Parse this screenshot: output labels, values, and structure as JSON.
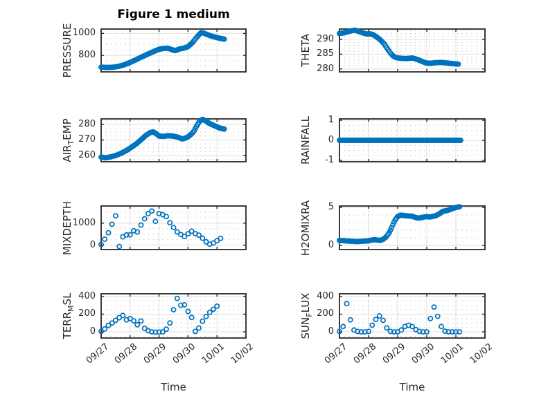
{
  "figure": {
    "title": "Figure 1 medium",
    "xlabel": "Time",
    "x_tick_labels": [
      "09/27",
      "09/28",
      "09/29",
      "09/30",
      "10/01",
      "10/02"
    ],
    "xlim_days": [
      0,
      5
    ],
    "marker_color": "#0072BD",
    "axis_color": "#262626",
    "grid_on": true,
    "minor_grid_on": true
  },
  "chart_data": [
    {
      "type": "scatter",
      "name": "pressure",
      "ylabel": "PRESSURE",
      "ylabel_parts": [
        {
          "text": "PRESSURE"
        }
      ],
      "yticks": [
        800,
        1000
      ],
      "ylim": [
        650,
        1040
      ],
      "yminor_step": 50,
      "interval_hours": 1,
      "points": [
        [
          0,
          693
        ],
        [
          0.2,
          690
        ],
        [
          0.4,
          692
        ],
        [
          0.6,
          700
        ],
        [
          0.8,
          715
        ],
        [
          1.0,
          736
        ],
        [
          1.2,
          760
        ],
        [
          1.4,
          786
        ],
        [
          1.6,
          810
        ],
        [
          1.8,
          834
        ],
        [
          2.0,
          856
        ],
        [
          2.15,
          863
        ],
        [
          2.3,
          866
        ],
        [
          2.45,
          852
        ],
        [
          2.55,
          843
        ],
        [
          2.7,
          858
        ],
        [
          2.85,
          866
        ],
        [
          3.0,
          880
        ],
        [
          3.15,
          915
        ],
        [
          3.3,
          965
        ],
        [
          3.45,
          1008
        ],
        [
          3.55,
          1002
        ],
        [
          3.7,
          986
        ],
        [
          3.85,
          972
        ],
        [
          4.0,
          962
        ],
        [
          4.1,
          956
        ],
        [
          4.25,
          948
        ]
      ]
    },
    {
      "type": "scatter",
      "name": "theta",
      "ylabel": "THETA",
      "ylabel_parts": [
        {
          "text": "THETA"
        }
      ],
      "yticks": [
        280,
        285,
        290
      ],
      "ylim": [
        279,
        293.5
      ],
      "yminor_step": 1,
      "interval_hours": 1,
      "points": [
        [
          0,
          292.0
        ],
        [
          0.15,
          292.2
        ],
        [
          0.3,
          292.6
        ],
        [
          0.45,
          293.0
        ],
        [
          0.55,
          293.1
        ],
        [
          0.65,
          292.7
        ],
        [
          0.8,
          292.2
        ],
        [
          0.95,
          291.8
        ],
        [
          1.05,
          291.9
        ],
        [
          1.15,
          291.6
        ],
        [
          1.25,
          291.0
        ],
        [
          1.35,
          290.3
        ],
        [
          1.45,
          289.4
        ],
        [
          1.55,
          288.3
        ],
        [
          1.65,
          286.8
        ],
        [
          1.75,
          285.4
        ],
        [
          1.85,
          284.3
        ],
        [
          1.95,
          283.8
        ],
        [
          2.1,
          283.6
        ],
        [
          2.3,
          283.5
        ],
        [
          2.5,
          283.7
        ],
        [
          2.65,
          283.3
        ],
        [
          2.8,
          282.7
        ],
        [
          2.95,
          282.1
        ],
        [
          3.1,
          281.9
        ],
        [
          3.3,
          282.1
        ],
        [
          3.5,
          282.2
        ],
        [
          3.7,
          282.0
        ],
        [
          3.9,
          281.8
        ],
        [
          4.1,
          281.6
        ]
      ]
    },
    {
      "type": "scatter",
      "name": "air-temp",
      "ylabel": "AIR_TEMP",
      "ylabel_parts": [
        {
          "text": "AIR"
        },
        {
          "text": "T",
          "sub": true
        },
        {
          "text": "EMP"
        }
      ],
      "yticks": [
        260,
        270,
        280
      ],
      "ylim": [
        256,
        283.5
      ],
      "yminor_step": 2.5,
      "interval_hours": 1,
      "points": [
        [
          0,
          259
        ],
        [
          0.15,
          258.5
        ],
        [
          0.3,
          259
        ],
        [
          0.5,
          260
        ],
        [
          0.7,
          261.5
        ],
        [
          0.9,
          263.5
        ],
        [
          1.1,
          266
        ],
        [
          1.25,
          268
        ],
        [
          1.4,
          270.5
        ],
        [
          1.55,
          273
        ],
        [
          1.7,
          274.8
        ],
        [
          1.8,
          275.2
        ],
        [
          1.9,
          274
        ],
        [
          2.0,
          272.5
        ],
        [
          2.15,
          272.3
        ],
        [
          2.3,
          272.7
        ],
        [
          2.5,
          272.4
        ],
        [
          2.65,
          271.8
        ],
        [
          2.8,
          270.6
        ],
        [
          2.9,
          271.1
        ],
        [
          3.0,
          272
        ],
        [
          3.1,
          273.5
        ],
        [
          3.2,
          275.5
        ],
        [
          3.3,
          279
        ],
        [
          3.4,
          282
        ],
        [
          3.5,
          283.2
        ],
        [
          3.6,
          282.4
        ],
        [
          3.7,
          281
        ],
        [
          3.85,
          279.6
        ],
        [
          4.0,
          278.4
        ],
        [
          4.1,
          277.6
        ],
        [
          4.25,
          277
        ]
      ]
    },
    {
      "type": "scatter",
      "name": "rainfall",
      "ylabel": "RAINFALL",
      "ylabel_parts": [
        {
          "text": "RAINFALL"
        }
      ],
      "yticks": [
        -1,
        0,
        1
      ],
      "ylim": [
        -1.07,
        1.07
      ],
      "yminor_step": 0.25,
      "interval_hours": 1,
      "points": [
        [
          0,
          0
        ],
        [
          4.2,
          0
        ]
      ]
    },
    {
      "type": "scatter",
      "name": "mixdepth",
      "ylabel": "MIXDEPTH",
      "ylabel_parts": [
        {
          "text": "MIXDEPTH"
        }
      ],
      "yticks": [
        0,
        1000
      ],
      "ylim": [
        -200,
        1780
      ],
      "yminor_step": 250,
      "interval_hours": 3,
      "points": [
        [
          0,
          30
        ],
        [
          0.1,
          200
        ],
        [
          0.2,
          480
        ],
        [
          0.3,
          650
        ],
        [
          0.4,
          1050
        ],
        [
          0.47,
          1380
        ],
        [
          0.52,
          1300
        ],
        [
          0.58,
          800
        ],
        [
          0.62,
          -80
        ],
        [
          0.68,
          150
        ],
        [
          0.75,
          380
        ],
        [
          0.85,
          480
        ],
        [
          0.95,
          420
        ],
        [
          1.05,
          520
        ],
        [
          1.15,
          700
        ],
        [
          1.25,
          600
        ],
        [
          1.35,
          850
        ],
        [
          1.45,
          1100
        ],
        [
          1.55,
          1300
        ],
        [
          1.65,
          1480
        ],
        [
          1.75,
          1550
        ],
        [
          1.82,
          1420
        ],
        [
          1.88,
          1050
        ],
        [
          1.95,
          1520
        ],
        [
          2.05,
          1350
        ],
        [
          2.15,
          1400
        ],
        [
          2.25,
          1300
        ],
        [
          2.45,
          850
        ],
        [
          2.55,
          750
        ],
        [
          2.65,
          550
        ],
        [
          2.75,
          480
        ],
        [
          2.85,
          380
        ],
        [
          2.95,
          430
        ],
        [
          3.05,
          600
        ],
        [
          3.15,
          650
        ],
        [
          3.25,
          520
        ],
        [
          3.35,
          480
        ],
        [
          3.45,
          380
        ],
        [
          3.55,
          250
        ],
        [
          3.65,
          120
        ],
        [
          3.75,
          40
        ],
        [
          3.85,
          80
        ],
        [
          3.95,
          150
        ],
        [
          4.05,
          250
        ],
        [
          4.15,
          330
        ],
        [
          4.2,
          360
        ]
      ]
    },
    {
      "type": "scatter",
      "name": "h2omixra",
      "ylabel": "H2OMIXRA",
      "ylabel_parts": [
        {
          "text": "H2OMIXRA"
        }
      ],
      "yticks": [
        0,
        5
      ],
      "ylim": [
        -0.55,
        5.2
      ],
      "yminor_step": 1,
      "interval_hours": 1,
      "points": [
        [
          0,
          0.65
        ],
        [
          0.2,
          0.6
        ],
        [
          0.4,
          0.55
        ],
        [
          0.6,
          0.5
        ],
        [
          0.8,
          0.55
        ],
        [
          1.0,
          0.6
        ],
        [
          1.1,
          0.7
        ],
        [
          1.2,
          0.75
        ],
        [
          1.3,
          0.7
        ],
        [
          1.4,
          0.65
        ],
        [
          1.5,
          0.8
        ],
        [
          1.6,
          1.1
        ],
        [
          1.7,
          1.6
        ],
        [
          1.8,
          2.4
        ],
        [
          1.9,
          3.3
        ],
        [
          2.0,
          3.8
        ],
        [
          2.1,
          4.0
        ],
        [
          2.3,
          3.9
        ],
        [
          2.5,
          3.85
        ],
        [
          2.6,
          3.7
        ],
        [
          2.7,
          3.6
        ],
        [
          2.8,
          3.65
        ],
        [
          2.9,
          3.75
        ],
        [
          3.0,
          3.8
        ],
        [
          3.1,
          3.75
        ],
        [
          3.3,
          3.9
        ],
        [
          3.45,
          4.2
        ],
        [
          3.55,
          4.5
        ],
        [
          3.7,
          4.6
        ],
        [
          3.85,
          4.8
        ],
        [
          3.95,
          4.95
        ],
        [
          4.05,
          5.05
        ],
        [
          4.15,
          5.1
        ]
      ]
    },
    {
      "type": "scatter",
      "name": "terr-msl",
      "ylabel": "TERR_MSL",
      "ylabel_parts": [
        {
          "text": "TERR"
        },
        {
          "text": "M",
          "sub": true
        },
        {
          "text": "SL"
        }
      ],
      "yticks": [
        0,
        200,
        400
      ],
      "ylim": [
        -70,
        430
      ],
      "yminor_step": 50,
      "interval_hours": 3,
      "points": [
        [
          0,
          5
        ],
        [
          0.1,
          25
        ],
        [
          0.2,
          55
        ],
        [
          0.3,
          90
        ],
        [
          0.35,
          110
        ],
        [
          0.42,
          80
        ],
        [
          0.5,
          130
        ],
        [
          0.55,
          180
        ],
        [
          0.6,
          150
        ],
        [
          0.65,
          170
        ],
        [
          0.7,
          160
        ],
        [
          0.75,
          185
        ],
        [
          0.8,
          150
        ],
        [
          0.85,
          160
        ],
        [
          0.9,
          110
        ],
        [
          0.95,
          130
        ],
        [
          1.0,
          150
        ],
        [
          1.05,
          195
        ],
        [
          1.1,
          150
        ],
        [
          1.15,
          100
        ],
        [
          1.2,
          60
        ],
        [
          1.25,
          80
        ],
        [
          1.3,
          110
        ],
        [
          1.35,
          150
        ],
        [
          1.4,
          95
        ],
        [
          1.45,
          60
        ],
        [
          1.5,
          40
        ],
        [
          1.55,
          55
        ],
        [
          1.6,
          20
        ],
        [
          1.65,
          5
        ],
        [
          1.75,
          0
        ],
        [
          1.85,
          -5
        ],
        [
          1.95,
          0
        ],
        [
          2.05,
          -5
        ],
        [
          2.15,
          0
        ],
        [
          2.25,
          30
        ],
        [
          2.3,
          55
        ],
        [
          2.35,
          40
        ],
        [
          2.4,
          160
        ],
        [
          2.45,
          230
        ],
        [
          2.5,
          250
        ],
        [
          2.55,
          310
        ],
        [
          2.6,
          385
        ],
        [
          2.65,
          370
        ],
        [
          2.7,
          320
        ],
        [
          2.75,
          300
        ],
        [
          2.8,
          290
        ],
        [
          2.85,
          310
        ],
        [
          2.9,
          300
        ],
        [
          2.95,
          280
        ],
        [
          3.0,
          230
        ],
        [
          3.05,
          260
        ],
        [
          3.1,
          130
        ],
        [
          3.15,
          195
        ],
        [
          3.2,
          30
        ],
        [
          3.25,
          5
        ],
        [
          3.3,
          0
        ],
        [
          3.35,
          20
        ],
        [
          3.4,
          65
        ],
        [
          3.45,
          100
        ],
        [
          3.5,
          120
        ],
        [
          3.55,
          140
        ],
        [
          3.6,
          160
        ],
        [
          3.65,
          185
        ],
        [
          3.7,
          200
        ],
        [
          3.75,
          220
        ],
        [
          3.8,
          230
        ],
        [
          3.85,
          250
        ],
        [
          3.9,
          260
        ],
        [
          3.95,
          275
        ],
        [
          4.0,
          290
        ],
        [
          4.1,
          305
        ]
      ]
    },
    {
      "type": "scatter",
      "name": "sun-flux",
      "ylabel": "SUN_FLUX",
      "ylabel_parts": [
        {
          "text": "SUN"
        },
        {
          "text": "F",
          "sub": true
        },
        {
          "text": "LUX"
        }
      ],
      "yticks": [
        0,
        200,
        400
      ],
      "ylim": [
        -70,
        430
      ],
      "yminor_step": 50,
      "interval_hours": 3,
      "points": [
        [
          0,
          5
        ],
        [
          0.05,
          20
        ],
        [
          0.1,
          45
        ],
        [
          0.15,
          75
        ],
        [
          0.2,
          340
        ],
        [
          0.24,
          335
        ],
        [
          0.28,
          270
        ],
        [
          0.32,
          230
        ],
        [
          0.36,
          160
        ],
        [
          0.4,
          95
        ],
        [
          0.44,
          60
        ],
        [
          0.48,
          25
        ],
        [
          0.55,
          8
        ],
        [
          0.7,
          0
        ],
        [
          0.9,
          0
        ],
        [
          1.0,
          5
        ],
        [
          1.05,
          30
        ],
        [
          1.1,
          60
        ],
        [
          1.15,
          90
        ],
        [
          1.2,
          120
        ],
        [
          1.25,
          140
        ],
        [
          1.3,
          190
        ],
        [
          1.35,
          160
        ],
        [
          1.4,
          200
        ],
        [
          1.45,
          150
        ],
        [
          1.5,
          130
        ],
        [
          1.55,
          100
        ],
        [
          1.6,
          60
        ],
        [
          1.65,
          30
        ],
        [
          1.7,
          10
        ],
        [
          1.8,
          0
        ],
        [
          2.0,
          0
        ],
        [
          2.1,
          10
        ],
        [
          2.15,
          30
        ],
        [
          2.2,
          50
        ],
        [
          2.3,
          70
        ],
        [
          2.4,
          75
        ],
        [
          2.5,
          60
        ],
        [
          2.6,
          30
        ],
        [
          2.7,
          10
        ],
        [
          2.8,
          0
        ],
        [
          3.0,
          0
        ],
        [
          3.05,
          60
        ],
        [
          3.1,
          130
        ],
        [
          3.15,
          170
        ],
        [
          3.2,
          230
        ],
        [
          3.25,
          280
        ],
        [
          3.3,
          250
        ],
        [
          3.35,
          200
        ],
        [
          3.4,
          150
        ],
        [
          3.45,
          100
        ],
        [
          3.5,
          60
        ],
        [
          3.55,
          30
        ],
        [
          3.6,
          10
        ],
        [
          3.7,
          0
        ],
        [
          4.2,
          0
        ]
      ]
    }
  ]
}
